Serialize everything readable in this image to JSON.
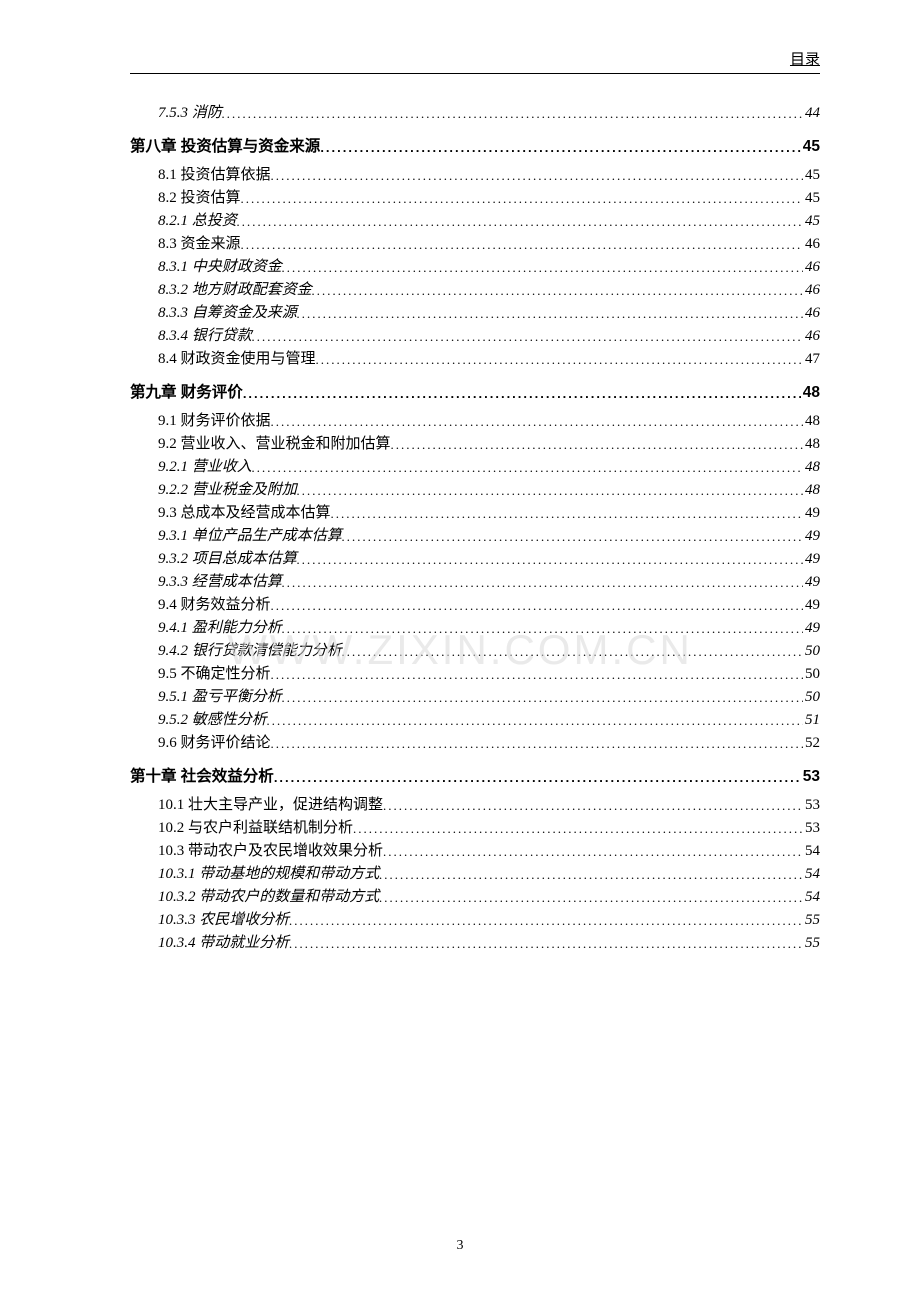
{
  "header": {
    "right_label": "目录"
  },
  "footer": {
    "page_number": "3"
  },
  "watermark": {
    "text": "WWW.ZIXIN.COM.CN"
  },
  "toc": [
    {
      "level": "lvl-2",
      "label": "7.5.3 消防",
      "page": "44"
    },
    {
      "level": "lvl-chapter",
      "label": "第八章  投资估算与资金来源",
      "page": "45"
    },
    {
      "level": "lvl-1",
      "label": "8.1 投资估算依据",
      "page": "45"
    },
    {
      "level": "lvl-1",
      "label": "8.2 投资估算",
      "page": "45"
    },
    {
      "level": "lvl-2",
      "label": "8.2.1 总投资",
      "page": "45"
    },
    {
      "level": "lvl-1",
      "label": "8.3 资金来源",
      "page": "46"
    },
    {
      "level": "lvl-2",
      "label": "8.3.1 中央财政资金",
      "page": "46"
    },
    {
      "level": "lvl-2",
      "label": "8.3.2 地方财政配套资金",
      "page": "46"
    },
    {
      "level": "lvl-2",
      "label": "8.3.3 自筹资金及来源",
      "page": "46"
    },
    {
      "level": "lvl-2",
      "label": "8.3.4 银行贷款",
      "page": "46"
    },
    {
      "level": "lvl-1",
      "label": "8.4 财政资金使用与管理",
      "page": "47"
    },
    {
      "level": "lvl-chapter",
      "label": "第九章  财务评价",
      "page": "48"
    },
    {
      "level": "lvl-1",
      "label": "9.1 财务评价依据",
      "page": "48"
    },
    {
      "level": "lvl-1",
      "label": "9.2 营业收入、营业税金和附加估算",
      "page": "48"
    },
    {
      "level": "lvl-2",
      "label": "9.2.1 营业收入",
      "page": "48"
    },
    {
      "level": "lvl-2",
      "label": "9.2.2 营业税金及附加",
      "page": "48"
    },
    {
      "level": "lvl-1",
      "label": "9.3 总成本及经营成本估算",
      "page": "49"
    },
    {
      "level": "lvl-2",
      "label": "9.3.1 单位产品生产成本估算",
      "page": "49"
    },
    {
      "level": "lvl-2",
      "label": "9.3.2 项目总成本估算",
      "page": "49"
    },
    {
      "level": "lvl-2",
      "label": "9.3.3 经营成本估算",
      "page": "49"
    },
    {
      "level": "lvl-1",
      "label": "9.4 财务效益分析",
      "page": "49"
    },
    {
      "level": "lvl-2",
      "label": "9.4.1 盈利能力分析",
      "page": "49"
    },
    {
      "level": "lvl-2",
      "label": "9.4.2 银行贷款清偿能力分析",
      "page": "50"
    },
    {
      "level": "lvl-1",
      "label": "9.5 不确定性分析",
      "page": "50"
    },
    {
      "level": "lvl-2",
      "label": "9.5.1 盈亏平衡分析",
      "page": "50"
    },
    {
      "level": "lvl-2",
      "label": "9.5.2 敏感性分析",
      "page": "51"
    },
    {
      "level": "lvl-1",
      "label": "9.6 财务评价结论",
      "page": "52"
    },
    {
      "level": "lvl-chapter",
      "label": "第十章  社会效益分析",
      "page": "53"
    },
    {
      "level": "lvl-1",
      "label": "10.1 壮大主导产业，促进结构调整",
      "page": "53"
    },
    {
      "level": "lvl-1",
      "label": "10.2 与农户利益联结机制分析",
      "page": "53"
    },
    {
      "level": "lvl-1",
      "label": "10.3 带动农户及农民增收效果分析",
      "page": "54"
    },
    {
      "level": "lvl-2",
      "label": "10.3.1 带动基地的规模和带动方式",
      "page": "54"
    },
    {
      "level": "lvl-2",
      "label": "10.3.2 带动农户的数量和带动方式",
      "page": "54"
    },
    {
      "level": "lvl-2",
      "label": "10.3.3 农民增收分析",
      "page": "55"
    },
    {
      "level": "lvl-2",
      "label": "10.3.4 带动就业分析",
      "page": "55"
    }
  ]
}
